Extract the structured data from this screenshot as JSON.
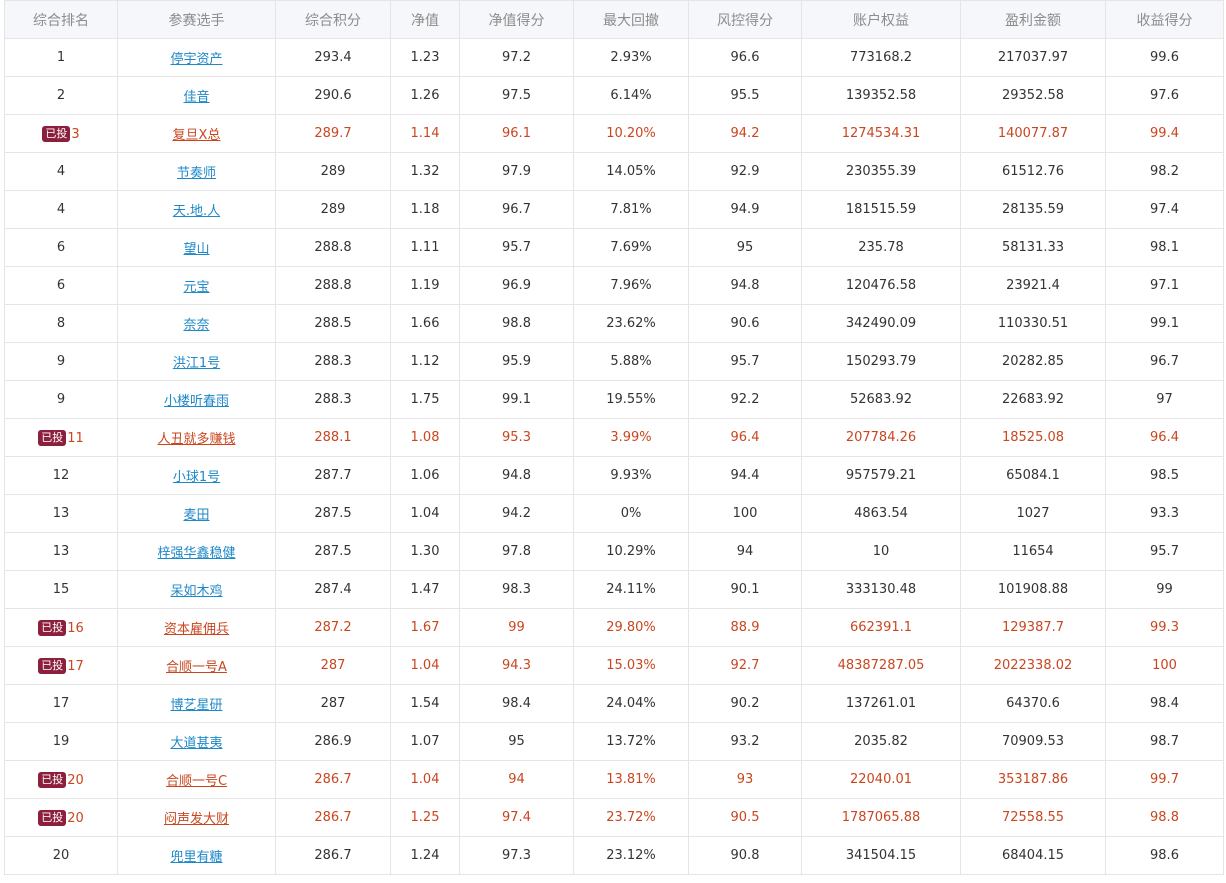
{
  "columns": [
    "综合排名",
    "参赛选手",
    "综合积分",
    "净值",
    "净值得分",
    "最大回撤",
    "风控得分",
    "账户权益",
    "盈利金额",
    "收益得分"
  ],
  "badge_label": "已投",
  "colors": {
    "link": "#1e88c8",
    "invested": "#c9461f",
    "badge_bg": "#8b1f3c",
    "header_bg": "#f5f7fa",
    "header_text": "#8c8c8c"
  },
  "rows": [
    {
      "rank": "1",
      "name": "停宇资产",
      "score": "293.4",
      "nav": "1.23",
      "nav_score": "97.2",
      "drawdown": "2.93%",
      "risk_score": "96.6",
      "equity": "773168.2",
      "profit": "217037.97",
      "return_score": "99.6",
      "invested": false
    },
    {
      "rank": "2",
      "name": "佳音",
      "score": "290.6",
      "nav": "1.26",
      "nav_score": "97.5",
      "drawdown": "6.14%",
      "risk_score": "95.5",
      "equity": "139352.58",
      "profit": "29352.58",
      "return_score": "97.6",
      "invested": false
    },
    {
      "rank": "3",
      "name": "复旦X总",
      "score": "289.7",
      "nav": "1.14",
      "nav_score": "96.1",
      "drawdown": "10.20%",
      "risk_score": "94.2",
      "equity": "1274534.31",
      "profit": "140077.87",
      "return_score": "99.4",
      "invested": true
    },
    {
      "rank": "4",
      "name": "节奏师",
      "score": "289",
      "nav": "1.32",
      "nav_score": "97.9",
      "drawdown": "14.05%",
      "risk_score": "92.9",
      "equity": "230355.39",
      "profit": "61512.76",
      "return_score": "98.2",
      "invested": false
    },
    {
      "rank": "4",
      "name": "天.地.人",
      "score": "289",
      "nav": "1.18",
      "nav_score": "96.7",
      "drawdown": "7.81%",
      "risk_score": "94.9",
      "equity": "181515.59",
      "profit": "28135.59",
      "return_score": "97.4",
      "invested": false
    },
    {
      "rank": "6",
      "name": "望山",
      "score": "288.8",
      "nav": "1.11",
      "nav_score": "95.7",
      "drawdown": "7.69%",
      "risk_score": "95",
      "equity": "235.78",
      "profit": "58131.33",
      "return_score": "98.1",
      "invested": false
    },
    {
      "rank": "6",
      "name": "元宝",
      "score": "288.8",
      "nav": "1.19",
      "nav_score": "96.9",
      "drawdown": "7.96%",
      "risk_score": "94.8",
      "equity": "120476.58",
      "profit": "23921.4",
      "return_score": "97.1",
      "invested": false
    },
    {
      "rank": "8",
      "name": "奈奈",
      "score": "288.5",
      "nav": "1.66",
      "nav_score": "98.8",
      "drawdown": "23.62%",
      "risk_score": "90.6",
      "equity": "342490.09",
      "profit": "110330.51",
      "return_score": "99.1",
      "invested": false
    },
    {
      "rank": "9",
      "name": "洪江1号",
      "score": "288.3",
      "nav": "1.12",
      "nav_score": "95.9",
      "drawdown": "5.88%",
      "risk_score": "95.7",
      "equity": "150293.79",
      "profit": "20282.85",
      "return_score": "96.7",
      "invested": false
    },
    {
      "rank": "9",
      "name": "小楼听春雨",
      "score": "288.3",
      "nav": "1.75",
      "nav_score": "99.1",
      "drawdown": "19.55%",
      "risk_score": "92.2",
      "equity": "52683.92",
      "profit": "22683.92",
      "return_score": "97",
      "invested": false
    },
    {
      "rank": "11",
      "name": "人丑就多赚钱",
      "score": "288.1",
      "nav": "1.08",
      "nav_score": "95.3",
      "drawdown": "3.99%",
      "risk_score": "96.4",
      "equity": "207784.26",
      "profit": "18525.08",
      "return_score": "96.4",
      "invested": true
    },
    {
      "rank": "12",
      "name": "小球1号",
      "score": "287.7",
      "nav": "1.06",
      "nav_score": "94.8",
      "drawdown": "9.93%",
      "risk_score": "94.4",
      "equity": "957579.21",
      "profit": "65084.1",
      "return_score": "98.5",
      "invested": false
    },
    {
      "rank": "13",
      "name": "麦田",
      "score": "287.5",
      "nav": "1.04",
      "nav_score": "94.2",
      "drawdown": "0%",
      "risk_score": "100",
      "equity": "4863.54",
      "profit": "1027",
      "return_score": "93.3",
      "invested": false
    },
    {
      "rank": "13",
      "name": "梓强华鑫稳健",
      "score": "287.5",
      "nav": "1.30",
      "nav_score": "97.8",
      "drawdown": "10.29%",
      "risk_score": "94",
      "equity": "10",
      "profit": "11654",
      "return_score": "95.7",
      "invested": false
    },
    {
      "rank": "15",
      "name": "呆如木鸡",
      "score": "287.4",
      "nav": "1.47",
      "nav_score": "98.3",
      "drawdown": "24.11%",
      "risk_score": "90.1",
      "equity": "333130.48",
      "profit": "101908.88",
      "return_score": "99",
      "invested": false
    },
    {
      "rank": "16",
      "name": "资本雇佣兵",
      "score": "287.2",
      "nav": "1.67",
      "nav_score": "99",
      "drawdown": "29.80%",
      "risk_score": "88.9",
      "equity": "662391.1",
      "profit": "129387.7",
      "return_score": "99.3",
      "invested": true
    },
    {
      "rank": "17",
      "name": "合顺一号A",
      "score": "287",
      "nav": "1.04",
      "nav_score": "94.3",
      "drawdown": "15.03%",
      "risk_score": "92.7",
      "equity": "48387287.05",
      "profit": "2022338.02",
      "return_score": "100",
      "invested": true
    },
    {
      "rank": "17",
      "name": "博艺星研",
      "score": "287",
      "nav": "1.54",
      "nav_score": "98.4",
      "drawdown": "24.04%",
      "risk_score": "90.2",
      "equity": "137261.01",
      "profit": "64370.6",
      "return_score": "98.4",
      "invested": false
    },
    {
      "rank": "19",
      "name": "大道甚夷",
      "score": "286.9",
      "nav": "1.07",
      "nav_score": "95",
      "drawdown": "13.72%",
      "risk_score": "93.2",
      "equity": "2035.82",
      "profit": "70909.53",
      "return_score": "98.7",
      "invested": false
    },
    {
      "rank": "20",
      "name": "合顺一号C",
      "score": "286.7",
      "nav": "1.04",
      "nav_score": "94",
      "drawdown": "13.81%",
      "risk_score": "93",
      "equity": "22040.01",
      "profit": "353187.86",
      "return_score": "99.7",
      "invested": true
    },
    {
      "rank": "20",
      "name": "闷声发大财",
      "score": "286.7",
      "nav": "1.25",
      "nav_score": "97.4",
      "drawdown": "23.72%",
      "risk_score": "90.5",
      "equity": "1787065.88",
      "profit": "72558.55",
      "return_score": "98.8",
      "invested": true
    },
    {
      "rank": "20",
      "name": "兜里有糖",
      "score": "286.7",
      "nav": "1.24",
      "nav_score": "97.3",
      "drawdown": "23.12%",
      "risk_score": "90.8",
      "equity": "341504.15",
      "profit": "68404.15",
      "return_score": "98.6",
      "invested": false
    }
  ]
}
